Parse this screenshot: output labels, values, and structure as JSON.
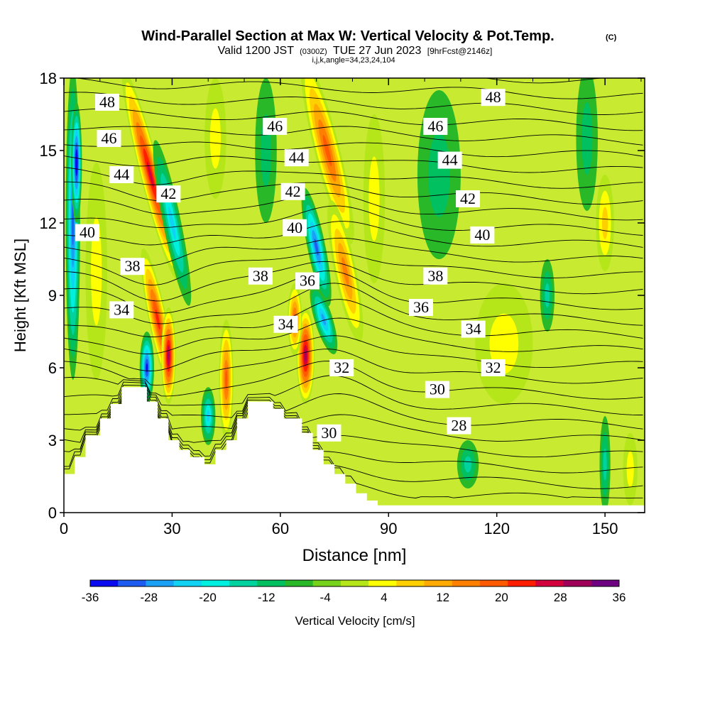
{
  "chart_data": {
    "type": "heatmap",
    "title": "Wind-Parallel Section at Max W: Vertical Velocity & Pot.Temp.",
    "copyright": "(C)",
    "subtitle_line1": {
      "valid": "Valid 1200 JST",
      "utc": "(0300Z)",
      "date": "TUE 27 Jun 2023",
      "forecast": "[9hrFcst@2146z]"
    },
    "subtitle_line2": "i,j,k,angle=34,23,24,104",
    "xlabel": "Distance [nm]",
    "ylabel": "Height [Kft MSL]",
    "xlim": [
      0,
      161
    ],
    "ylim": [
      0,
      18
    ],
    "x_ticks": [
      0,
      30,
      60,
      90,
      120,
      150
    ],
    "y_ticks": [
      0,
      3,
      6,
      9,
      12,
      15,
      18
    ],
    "colorbar": {
      "label": "Vertical Velocity [cm/s]",
      "tick_labels": [
        "-36",
        "-28",
        "-20",
        "-12",
        "-4",
        "4",
        "12",
        "20",
        "28",
        "36"
      ],
      "levels": [
        -36,
        -32,
        -28,
        -24,
        -20,
        -16,
        -12,
        -8,
        -4,
        0,
        4,
        8,
        12,
        16,
        20,
        24,
        28,
        32,
        36
      ],
      "colors": [
        "#0b0bf0",
        "#1e5bf0",
        "#1aa0f5",
        "#11d2f2",
        "#00f0e0",
        "#00d3a0",
        "#00c060",
        "#28b828",
        "#76d21a",
        "#b4e61a",
        "#ffff00",
        "#ffd000",
        "#ffaa00",
        "#ff8000",
        "#ff5a00",
        "#ff1e00",
        "#d2003c",
        "#a0005a",
        "#6e0082"
      ]
    },
    "terrain": [
      [
        0,
        1.6
      ],
      [
        3,
        1.6
      ],
      [
        3,
        2.3
      ],
      [
        6,
        2.3
      ],
      [
        6,
        3.2
      ],
      [
        10,
        3.2
      ],
      [
        10,
        3.9
      ],
      [
        13,
        3.9
      ],
      [
        13,
        4.5
      ],
      [
        16,
        4.5
      ],
      [
        16,
        5.2
      ],
      [
        23,
        5.2
      ],
      [
        23,
        4.6
      ],
      [
        26,
        4.6
      ],
      [
        26,
        3.9
      ],
      [
        29,
        3.9
      ],
      [
        29,
        3.0
      ],
      [
        32,
        3.0
      ],
      [
        32,
        2.6
      ],
      [
        35,
        2.6
      ],
      [
        35,
        2.3
      ],
      [
        39,
        2.3
      ],
      [
        39,
        2.0
      ],
      [
        42,
        2.0
      ],
      [
        42,
        2.6
      ],
      [
        45,
        2.6
      ],
      [
        45,
        3.0
      ],
      [
        48,
        3.0
      ],
      [
        48,
        3.9
      ],
      [
        51,
        3.9
      ],
      [
        51,
        4.6
      ],
      [
        58,
        4.6
      ],
      [
        58,
        4.3
      ],
      [
        61,
        4.3
      ],
      [
        61,
        3.9
      ],
      [
        66,
        3.9
      ],
      [
        66,
        3.3
      ],
      [
        69,
        3.3
      ],
      [
        69,
        2.6
      ],
      [
        72,
        2.6
      ],
      [
        72,
        2.0
      ],
      [
        75,
        2.0
      ],
      [
        75,
        1.6
      ],
      [
        78,
        1.6
      ],
      [
        78,
        1.2
      ],
      [
        81,
        1.2
      ],
      [
        81,
        0.8
      ],
      [
        84,
        0.8
      ],
      [
        84,
        0.5
      ],
      [
        87,
        0.5
      ],
      [
        87,
        0.3
      ],
      [
        161,
        0.3
      ]
    ],
    "w_features": [
      {
        "x": 2.5,
        "y": 12.0,
        "rx": 2.0,
        "ry": 6.5,
        "tilt": 0,
        "w": -28
      },
      {
        "x": 3.5,
        "y": 14.5,
        "rx": 1.5,
        "ry": 2.5,
        "tilt": 0,
        "w": -36
      },
      {
        "x": 9.0,
        "y": 10.0,
        "rx": 3.0,
        "ry": 4.5,
        "tilt": 0,
        "w": 6
      },
      {
        "x": 24.0,
        "y": 14.0,
        "rx": 2.8,
        "ry": 4.5,
        "tilt": 0.25,
        "w": 32
      },
      {
        "x": 26.0,
        "y": 8.0,
        "rx": 2.5,
        "ry": 3.0,
        "tilt": 0.2,
        "w": 26
      },
      {
        "x": 29.0,
        "y": 6.5,
        "rx": 2.0,
        "ry": 2.0,
        "tilt": 0,
        "w": 36
      },
      {
        "x": 23.0,
        "y": 6.0,
        "rx": 2.0,
        "ry": 1.5,
        "tilt": 0,
        "w": -30
      },
      {
        "x": 30.0,
        "y": 12.0,
        "rx": 2.5,
        "ry": 3.5,
        "tilt": 0.2,
        "w": -20
      },
      {
        "x": 40.0,
        "y": 4.0,
        "rx": 2.0,
        "ry": 1.2,
        "tilt": 0,
        "w": -20
      },
      {
        "x": 45.0,
        "y": 5.5,
        "rx": 2.0,
        "ry": 2.5,
        "tilt": 0,
        "w": 24
      },
      {
        "x": 42.0,
        "y": 15.5,
        "rx": 3.0,
        "ry": 2.5,
        "tilt": 0,
        "w": 8
      },
      {
        "x": 56.0,
        "y": 15.0,
        "rx": 3.0,
        "ry": 3.0,
        "tilt": 0,
        "w": -8
      },
      {
        "x": 73.0,
        "y": 15.0,
        "rx": 3.5,
        "ry": 4.0,
        "tilt": 0.25,
        "w": 24
      },
      {
        "x": 78.0,
        "y": 10.0,
        "rx": 3.0,
        "ry": 3.0,
        "tilt": 0.2,
        "w": 18
      },
      {
        "x": 67.0,
        "y": 6.5,
        "rx": 2.5,
        "ry": 2.0,
        "tilt": 0,
        "w": 36
      },
      {
        "x": 64.0,
        "y": 8.0,
        "rx": 2.0,
        "ry": 1.5,
        "tilt": 0,
        "w": 22
      },
      {
        "x": 70.0,
        "y": 11.0,
        "rx": 2.5,
        "ry": 2.5,
        "tilt": 0.2,
        "w": -26
      },
      {
        "x": 72.0,
        "y": 8.0,
        "rx": 2.5,
        "ry": 1.5,
        "tilt": 0.3,
        "w": -24
      },
      {
        "x": 86.0,
        "y": 13.0,
        "rx": 3.0,
        "ry": 3.5,
        "tilt": 0,
        "w": 6
      },
      {
        "x": 104.0,
        "y": 14.0,
        "rx": 6.0,
        "ry": 3.5,
        "tilt": 0,
        "w": -8
      },
      {
        "x": 122.0,
        "y": 7.0,
        "rx": 8.0,
        "ry": 2.5,
        "tilt": 0,
        "w": 6
      },
      {
        "x": 134.0,
        "y": 9.0,
        "rx": 2.0,
        "ry": 1.5,
        "tilt": 0,
        "w": -12
      },
      {
        "x": 150.0,
        "y": 2.0,
        "rx": 1.5,
        "ry": 2.0,
        "tilt": 0,
        "w": -12
      },
      {
        "x": 157.0,
        "y": 1.8,
        "rx": 2.0,
        "ry": 1.5,
        "tilt": 0,
        "w": 8
      },
      {
        "x": 112.0,
        "y": 2.0,
        "rx": 3.0,
        "ry": 1.0,
        "tilt": 0,
        "w": -12
      },
      {
        "x": 145.0,
        "y": 15.5,
        "rx": 3.0,
        "ry": 3.0,
        "tilt": 0,
        "w": -6
      },
      {
        "x": 150.0,
        "y": 12.0,
        "rx": 2.5,
        "ry": 2.0,
        "tilt": 0,
        "w": 10
      }
    ],
    "theta_labels": [
      {
        "text": "48",
        "x": 12,
        "y": 17.0
      },
      {
        "text": "46",
        "x": 12.5,
        "y": 15.5
      },
      {
        "text": "44",
        "x": 16,
        "y": 14.0
      },
      {
        "text": "42",
        "x": 29,
        "y": 13.2
      },
      {
        "text": "40",
        "x": 6.5,
        "y": 11.6
      },
      {
        "text": "38",
        "x": 19,
        "y": 10.2
      },
      {
        "text": "34",
        "x": 16,
        "y": 8.4
      },
      {
        "text": "46",
        "x": 58.5,
        "y": 16.0
      },
      {
        "text": "44",
        "x": 64.5,
        "y": 14.7
      },
      {
        "text": "42",
        "x": 63.5,
        "y": 13.3
      },
      {
        "text": "40",
        "x": 64,
        "y": 11.8
      },
      {
        "text": "38",
        "x": 54.5,
        "y": 9.8
      },
      {
        "text": "36",
        "x": 67.5,
        "y": 9.6
      },
      {
        "text": "34",
        "x": 61.5,
        "y": 7.8
      },
      {
        "text": "32",
        "x": 77,
        "y": 6.0
      },
      {
        "text": "30",
        "x": 73.5,
        "y": 3.3
      },
      {
        "text": "48",
        "x": 119,
        "y": 17.2
      },
      {
        "text": "46",
        "x": 103,
        "y": 16.0
      },
      {
        "text": "44",
        "x": 107,
        "y": 14.6
      },
      {
        "text": "42",
        "x": 112,
        "y": 13.0
      },
      {
        "text": "40",
        "x": 116,
        "y": 11.5
      },
      {
        "text": "38",
        "x": 103,
        "y": 9.8
      },
      {
        "text": "36",
        "x": 99,
        "y": 8.5
      },
      {
        "text": "34",
        "x": 113.5,
        "y": 7.6
      },
      {
        "text": "32",
        "x": 119,
        "y": 6.0
      },
      {
        "text": "30",
        "x": 103.5,
        "y": 5.1
      },
      {
        "text": "28",
        "x": 109.5,
        "y": 3.6
      }
    ]
  }
}
